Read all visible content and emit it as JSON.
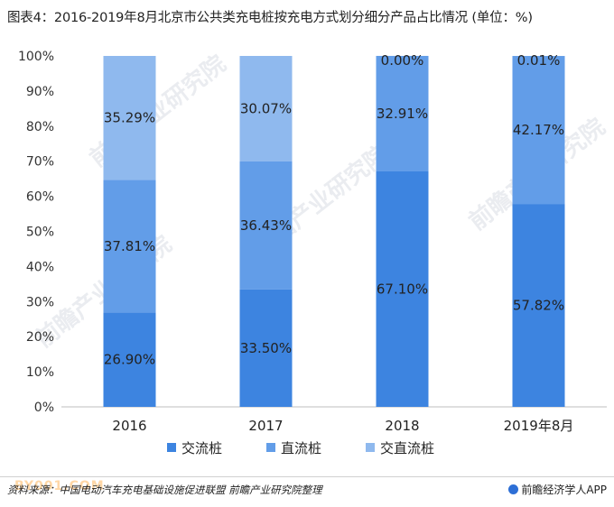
{
  "title": "图表4：2016-2019年8月北京市公共类充电桩按充电方式划分细分产品占比情况 (单位：%)",
  "source": "资料来源：中国电动汽车充电基础设施促进联盟 前瞻产业研究院整理",
  "brand": "前瞻经济学人APP",
  "site_mark": "BY001.COM",
  "watermark": "前瞻产业研究院",
  "chart_data": {
    "type": "bar",
    "stacked": true,
    "categories": [
      "2016",
      "2017",
      "2018",
      "2019年8月"
    ],
    "series": [
      {
        "name": "交流桩",
        "values": [
          26.9,
          33.5,
          67.1,
          57.82
        ],
        "labels": [
          "26.90%",
          "33.50%",
          "67.10%",
          "57.82%"
        ],
        "color": "#3d84e0"
      },
      {
        "name": "直流桩",
        "values": [
          37.81,
          36.43,
          32.91,
          42.17
        ],
        "labels": [
          "37.81%",
          "36.43%",
          "32.91%",
          "42.17%"
        ],
        "color": "#629de8"
      },
      {
        "name": "交直流桩",
        "values": [
          35.29,
          30.07,
          0.0,
          0.01
        ],
        "labels": [
          "35.29%",
          "30.07%",
          "0.00%",
          "0.01%"
        ],
        "color": "#8fb9ee"
      }
    ],
    "yticks": [
      "0%",
      "10%",
      "20%",
      "30%",
      "40%",
      "50%",
      "60%",
      "70%",
      "80%",
      "90%",
      "100%"
    ],
    "ylim": [
      0,
      100
    ],
    "grid": false,
    "legend": "bottom"
  }
}
